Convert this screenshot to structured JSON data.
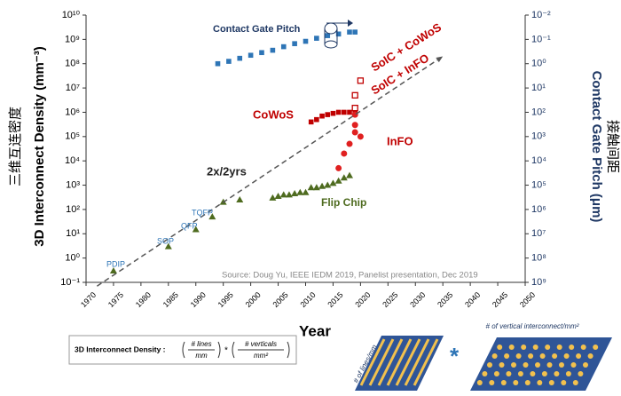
{
  "chart_data": {
    "type": "scatter",
    "y_label": "3D Interconnect Density (mm⁻³)",
    "y_label_cn": "三维互连密度",
    "y2_label": "Contact Gate Pitch (μm)",
    "y2_label_cn": "接触间距",
    "x_label": "Year",
    "log_scale": true,
    "xlim": [
      1970,
      2050
    ],
    "xticks": [
      1970,
      1975,
      1980,
      1985,
      1990,
      1995,
      2000,
      2005,
      2010,
      2015,
      2020,
      2025,
      2030,
      2035,
      2040,
      2045,
      2050
    ],
    "ylim": [
      0.1,
      10000000000
    ],
    "yticks": [
      {
        "value": 0.1,
        "label": "10⁻¹"
      },
      {
        "value": 1,
        "label": "10⁰"
      },
      {
        "value": 10,
        "label": "10¹"
      },
      {
        "value": 100,
        "label": "10²"
      },
      {
        "value": 1000,
        "label": "10³"
      },
      {
        "value": 10000,
        "label": "10⁴"
      },
      {
        "value": 100000,
        "label": "10⁵"
      },
      {
        "value": 1000000,
        "label": "10⁶"
      },
      {
        "value": 10000000,
        "label": "10⁷"
      },
      {
        "value": 100000000,
        "label": "10⁸"
      },
      {
        "value": 1000000000,
        "label": "10⁹"
      },
      {
        "value": 10000000000,
        "label": "10¹⁰"
      }
    ],
    "y2lim": [
      1000000000,
      0.01
    ],
    "y2ticks": [
      {
        "value": 0.01,
        "label": "10⁻²"
      },
      {
        "value": 0.1,
        "label": "10⁻¹"
      },
      {
        "value": 1,
        "label": "10⁰"
      },
      {
        "value": 10,
        "label": "10¹"
      },
      {
        "value": 100,
        "label": "10²"
      },
      {
        "value": 1000,
        "label": "10³"
      },
      {
        "value": 10000,
        "label": "10⁴"
      },
      {
        "value": 100000,
        "label": "10⁵"
      },
      {
        "value": 1000000,
        "label": "10⁶"
      },
      {
        "value": 10000000,
        "label": "10⁷"
      },
      {
        "value": 100000000,
        "label": "10⁸"
      },
      {
        "value": 1000000000,
        "label": "10⁹"
      }
    ],
    "series": [
      {
        "name": "Contact Gate Pitch",
        "color": "#2e75b6",
        "marker": "square",
        "axis": "y2",
        "x": [
          1994,
          1996,
          1998,
          2000,
          2002,
          2004,
          2006,
          2008,
          2010,
          2012,
          2014,
          2016,
          2018,
          2019
        ],
        "values": [
          1.0,
          0.8,
          0.6,
          0.45,
          0.35,
          0.28,
          0.2,
          0.15,
          0.12,
          0.09,
          0.07,
          0.06,
          0.05,
          0.05
        ]
      },
      {
        "name": "Flip Chip",
        "color": "#4e6b1f",
        "marker": "triangle",
        "x": [
          1975,
          1985,
          1990,
          1993,
          1995,
          1998,
          2004,
          2005,
          2006,
          2007,
          2008,
          2009,
          2010,
          2011,
          2012,
          2013,
          2014,
          2015,
          2016,
          2017,
          2018
        ],
        "values": [
          0.3,
          3,
          15,
          50,
          200,
          250,
          300,
          350,
          400,
          400,
          450,
          500,
          500,
          800,
          800,
          900,
          1000,
          1200,
          1500,
          2000,
          2500
        ]
      },
      {
        "name": "CoWoS",
        "color": "#c00000",
        "marker": "square",
        "x": [
          2011,
          2012,
          2013,
          2014,
          2015,
          2016,
          2017,
          2018,
          2019
        ],
        "values": [
          400000,
          500000,
          700000,
          800000,
          900000,
          1000000,
          1000000,
          1000000,
          1200000
        ]
      },
      {
        "name": "InFO",
        "color": "#e02020",
        "marker": "circle",
        "x": [
          2016,
          2017,
          2018,
          2019,
          2019,
          2020,
          2019
        ],
        "values": [
          5000,
          20000,
          50000,
          150000,
          300000,
          100000,
          800000
        ]
      },
      {
        "name": "SoIC + CoWoS",
        "color": "#c00000",
        "marker": "square-open",
        "x": [
          2020
        ],
        "values": [
          20000000
        ]
      },
      {
        "name": "SoIC + InFO",
        "color": "#c00000",
        "marker": "square-open",
        "x": [
          2019,
          2019
        ],
        "values": [
          5000000,
          1500000
        ]
      },
      {
        "name": "2x/2yrs",
        "color": "#555555",
        "marker": "dashed-line",
        "x": [
          1972,
          2035
        ],
        "values": [
          0.07,
          200000000
        ]
      }
    ],
    "annotations": [
      "PDIP",
      "SOP",
      "QFP",
      "TQFP",
      "Source: Doug Yu, IEEE IEDM 2019, Panelist presentation, Dec 2019"
    ]
  },
  "formula": {
    "label": "3D Interconnect Density :",
    "num1": "# lines",
    "den1": "mm",
    "operator": "*",
    "num2": "# verticals",
    "den2": "mm²"
  },
  "diagram": {
    "left_label": "# of lines/mm",
    "right_label": "# of vertical interconnect/mm²",
    "operator": "*"
  }
}
